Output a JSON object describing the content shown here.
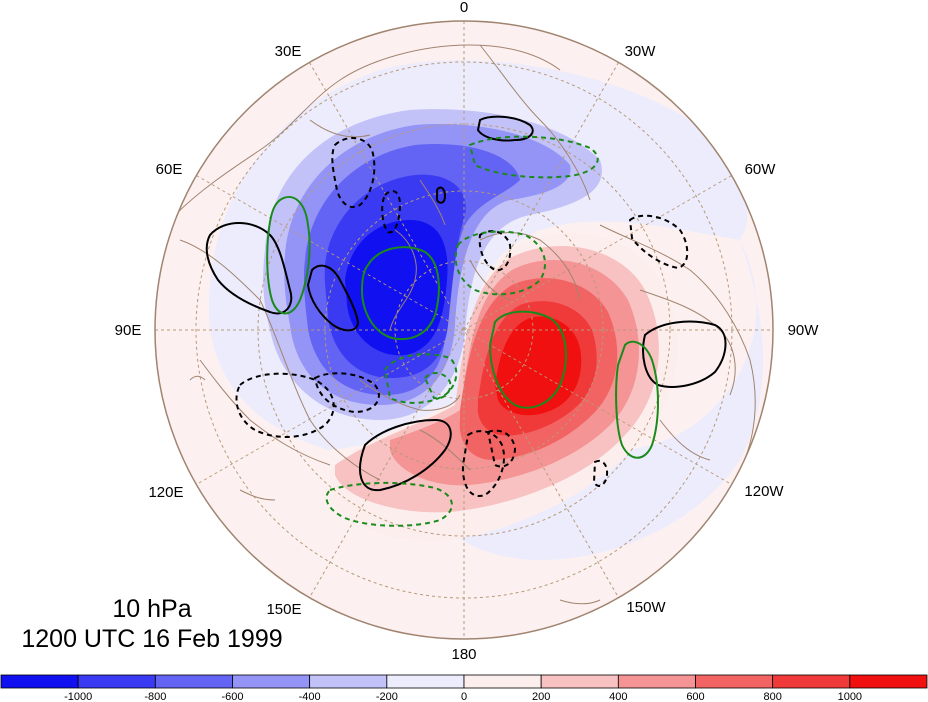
{
  "title": {
    "level": "10 hPa",
    "time": "1200 UTC 16 Feb 1999"
  },
  "longitude_labels": [
    {
      "id": "lon-0",
      "text": "0"
    },
    {
      "id": "lon-30w",
      "text": "30W"
    },
    {
      "id": "lon-60w",
      "text": "60W"
    },
    {
      "id": "lon-90w",
      "text": "90W"
    },
    {
      "id": "lon-120w",
      "text": "120W"
    },
    {
      "id": "lon-150w",
      "text": "150W"
    },
    {
      "id": "lon-180",
      "text": "180"
    },
    {
      "id": "lon-150e",
      "text": "150E"
    },
    {
      "id": "lon-120e",
      "text": "120E"
    },
    {
      "id": "lon-90e",
      "text": "90E"
    },
    {
      "id": "lon-60e",
      "text": "60E"
    },
    {
      "id": "lon-30e",
      "text": "30E"
    }
  ],
  "colorbar": {
    "colors": [
      "#1010f0",
      "#3a3af2",
      "#6464f4",
      "#9494f6",
      "#c2c2f8",
      "#ececfc",
      "#fdeeee",
      "#f8c2c2",
      "#f49494",
      "#f26464",
      "#f03a3a",
      "#f01010"
    ],
    "labels": [
      "-1000",
      "-800",
      "-600",
      "-400",
      "-200",
      "0",
      "200",
      "400",
      "600",
      "800",
      "1000"
    ]
  },
  "colors": {
    "negative_contour": "#000000",
    "green_contour": "#1a8a1a",
    "coastline": "#a08470",
    "graticule": "#b89a7a"
  }
}
